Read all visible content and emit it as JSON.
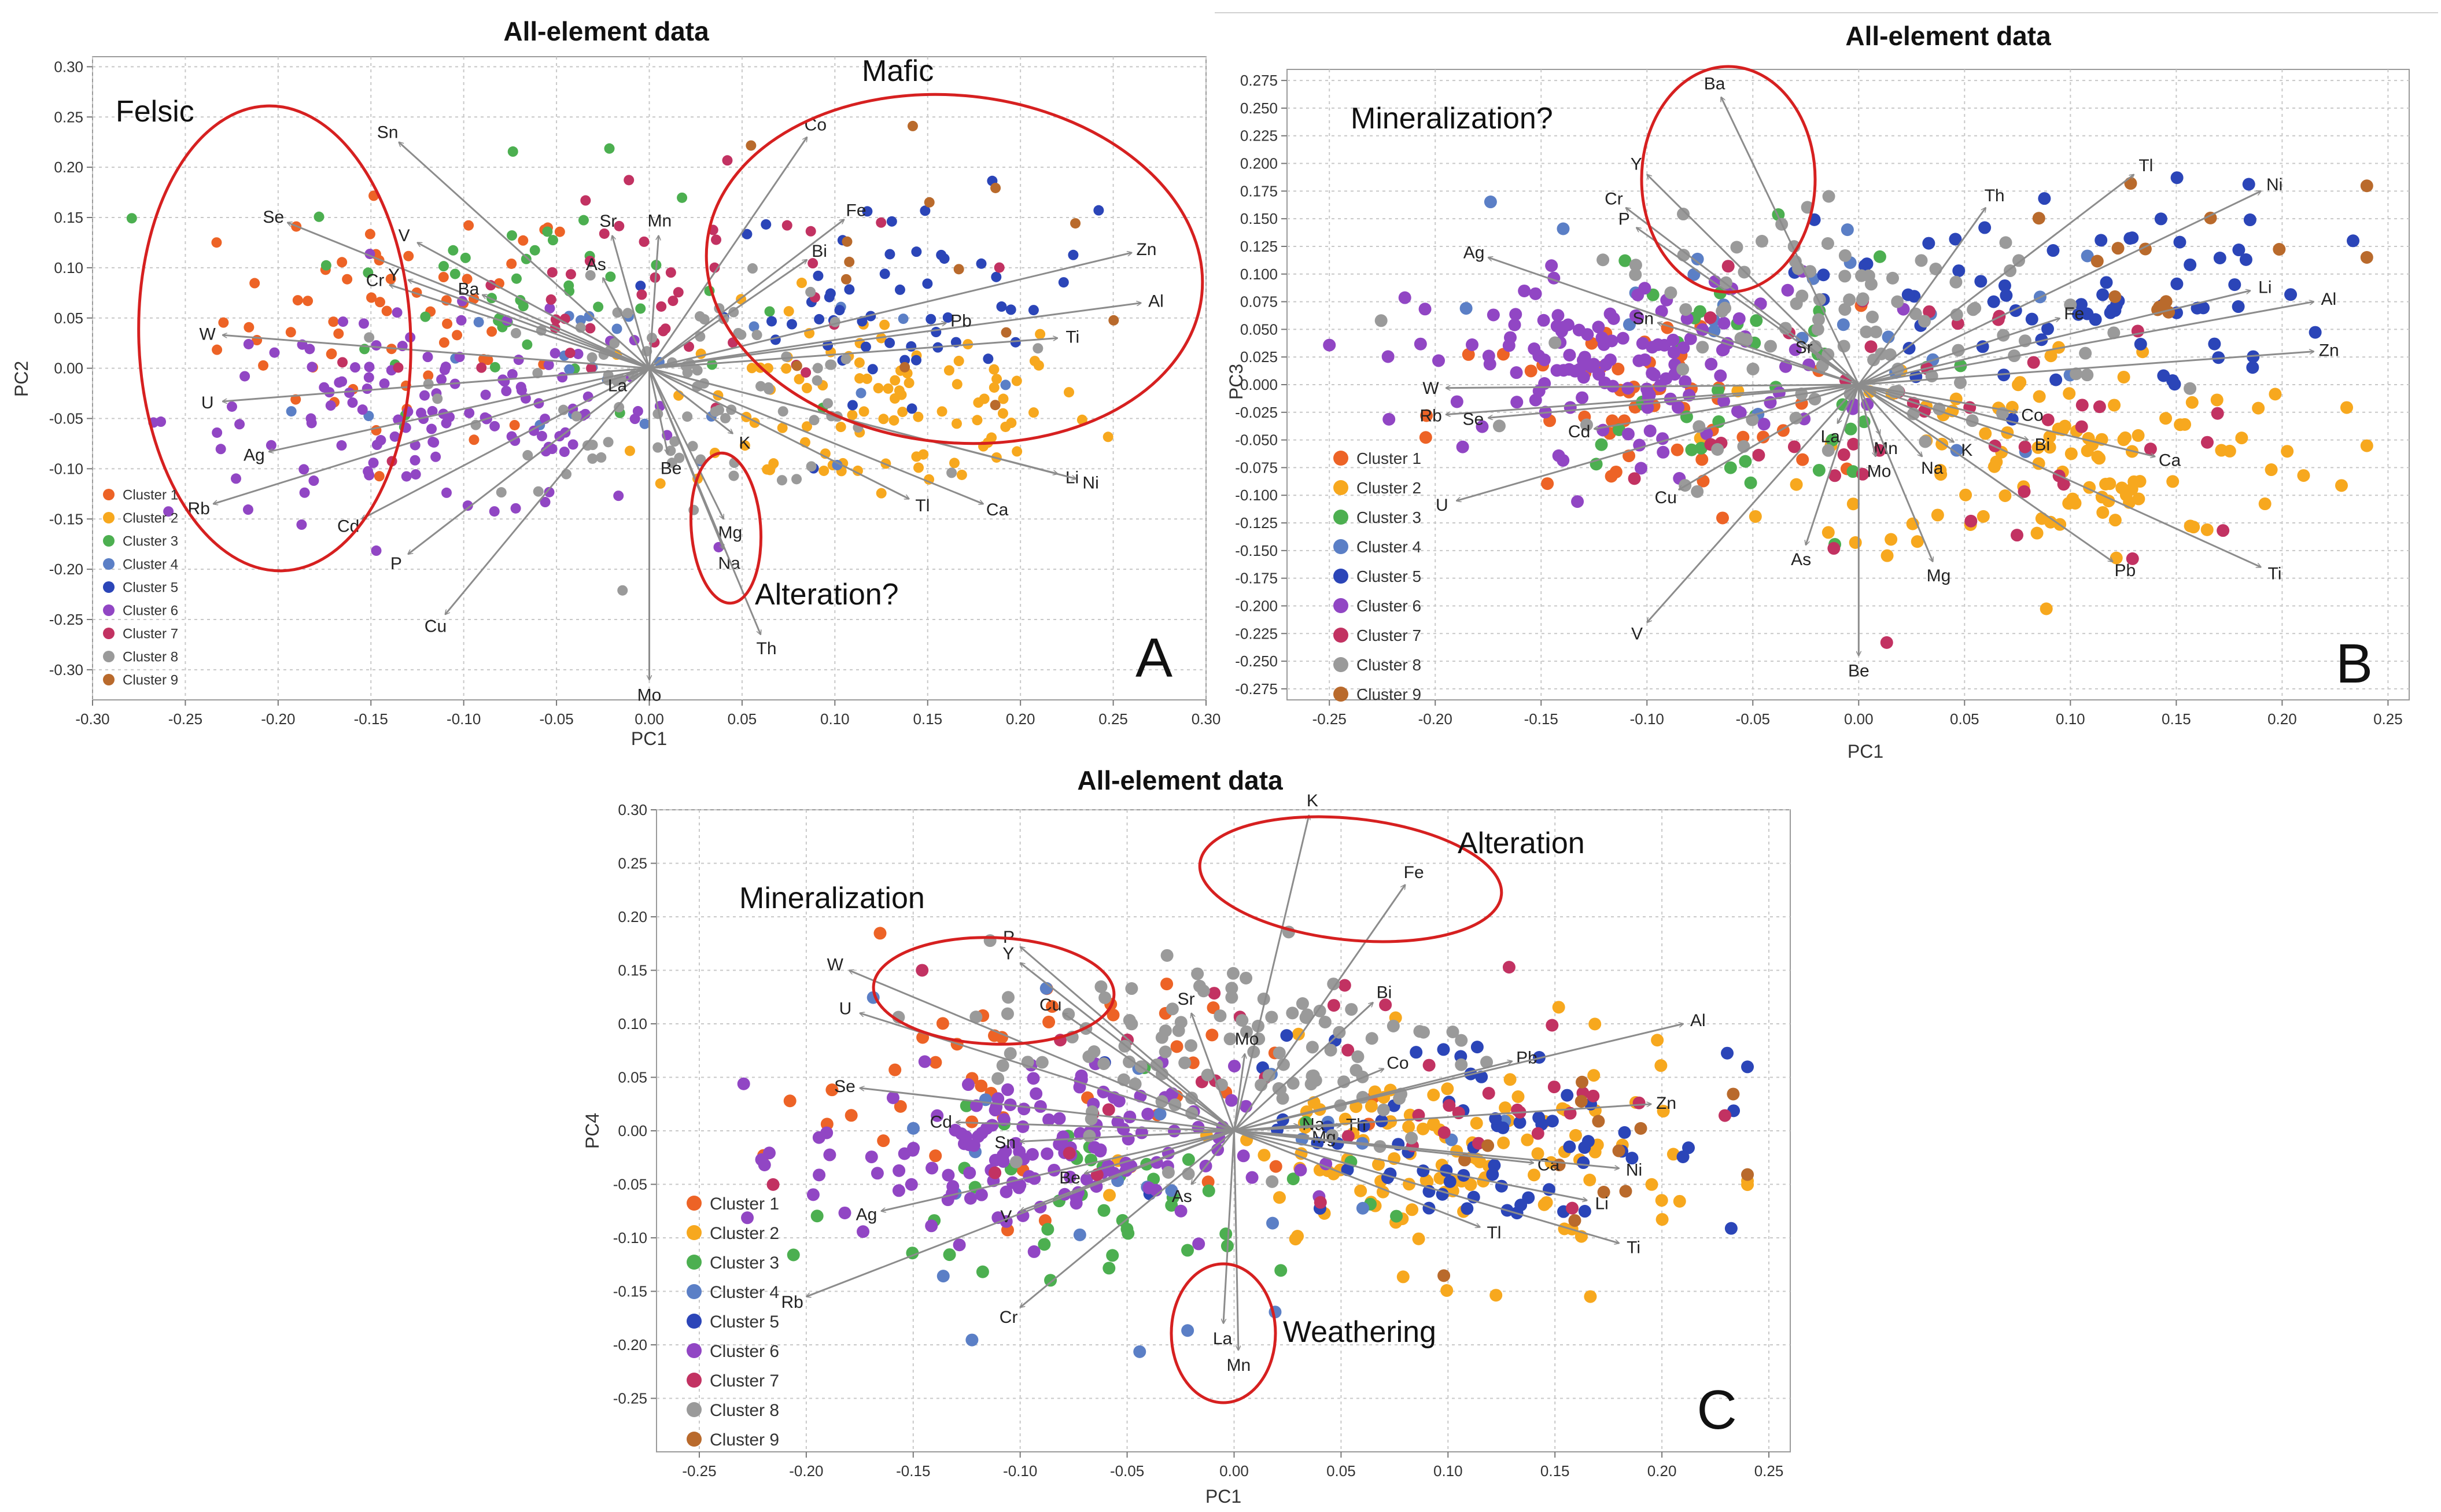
{
  "figure": {
    "titles": [
      "All-element data",
      "All-element data",
      "All-element data"
    ],
    "panel_labels": [
      "A",
      "B",
      "C"
    ]
  },
  "chart_data": [
    {
      "type": "scatter",
      "title": "All-element data",
      "xlabel": "PC1",
      "ylabel": "PC2",
      "xlim": [
        -0.3,
        0.3
      ],
      "ylim": [
        -0.33,
        0.31
      ],
      "x_ticks": [
        "-0.30",
        "-0.25",
        "-0.20",
        "-0.15",
        "-0.10",
        "-0.05",
        "0.00",
        "0.05",
        "0.10",
        "0.15",
        "0.20",
        "0.25",
        "0.30"
      ],
      "y_ticks": [
        "-0.30",
        "-0.25",
        "-0.20",
        "-0.15",
        "-0.10",
        "-0.05",
        "0.00",
        "0.05",
        "0.10",
        "0.15",
        "0.20",
        "0.25",
        "0.30"
      ],
      "grid": true,
      "legend_position": "bottom-left",
      "legend": [
        "Cluster 1",
        "Cluster 2",
        "Cluster 3",
        "Cluster 4",
        "Cluster 5",
        "Cluster 6",
        "Cluster 7",
        "Cluster 8",
        "Cluster 9"
      ],
      "loadings": [
        {
          "label": "Sn",
          "x": -0.135,
          "y": 0.225
        },
        {
          "label": "Se",
          "x": -0.195,
          "y": 0.145
        },
        {
          "label": "V",
          "x": -0.125,
          "y": 0.125
        },
        {
          "label": "Cr",
          "x": -0.14,
          "y": 0.083
        },
        {
          "label": "Y",
          "x": -0.13,
          "y": 0.088
        },
        {
          "label": "Ba",
          "x": -0.09,
          "y": 0.073
        },
        {
          "label": "W",
          "x": -0.23,
          "y": 0.033
        },
        {
          "label": "U",
          "x": -0.23,
          "y": -0.033
        },
        {
          "label": "Ag",
          "x": -0.205,
          "y": -0.083
        },
        {
          "label": "Rb",
          "x": -0.235,
          "y": -0.135
        },
        {
          "label": "Cd",
          "x": -0.155,
          "y": -0.15
        },
        {
          "label": "P",
          "x": -0.13,
          "y": -0.185
        },
        {
          "label": "Cu",
          "x": -0.11,
          "y": -0.245
        },
        {
          "label": "Sr",
          "x": -0.02,
          "y": 0.132
        },
        {
          "label": "Mn",
          "x": 0.005,
          "y": 0.132
        },
        {
          "label": "As",
          "x": -0.025,
          "y": 0.09
        },
        {
          "label": "La",
          "x": -0.01,
          "y": -0.01
        },
        {
          "label": "Be",
          "x": 0.01,
          "y": -0.085
        },
        {
          "label": "Mo",
          "x": 0.0,
          "y": -0.31
        },
        {
          "label": "Co",
          "x": 0.085,
          "y": 0.23
        },
        {
          "label": "Fe",
          "x": 0.105,
          "y": 0.148
        },
        {
          "label": "Bi",
          "x": 0.085,
          "y": 0.108
        },
        {
          "label": "Zn",
          "x": 0.26,
          "y": 0.115
        },
        {
          "label": "Al",
          "x": 0.265,
          "y": 0.065
        },
        {
          "label": "Pb",
          "x": 0.16,
          "y": 0.045
        },
        {
          "label": "Ti",
          "x": 0.22,
          "y": 0.03
        },
        {
          "label": "K",
          "x": 0.045,
          "y": -0.065
        },
        {
          "label": "Mg",
          "x": 0.04,
          "y": -0.15
        },
        {
          "label": "Na",
          "x": 0.04,
          "y": -0.18
        },
        {
          "label": "Th",
          "x": 0.06,
          "y": -0.265
        },
        {
          "label": "Tl",
          "x": 0.14,
          "y": -0.13
        },
        {
          "label": "Ca",
          "x": 0.18,
          "y": -0.135
        },
        {
          "label": "Li",
          "x": 0.22,
          "y": -0.105
        },
        {
          "label": "Ni",
          "x": 0.23,
          "y": -0.11
        }
      ],
      "annotations": [
        "Felsic",
        "Mafic",
        "Alteration?"
      ]
    },
    {
      "type": "scatter",
      "title": "All-element data",
      "xlabel": "PC1",
      "ylabel": "PC3",
      "xlim": [
        -0.27,
        0.26
      ],
      "ylim": [
        -0.285,
        0.285
      ],
      "x_ticks": [
        "-0.25",
        "-0.20",
        "-0.15",
        "-0.10",
        "-0.05",
        "0.00",
        "0.05",
        "0.10",
        "0.15",
        "0.20",
        "0.25"
      ],
      "y_ticks": [
        "-0.275",
        "-0.250",
        "-0.225",
        "-0.200",
        "-0.175",
        "-0.150",
        "-0.125",
        "-0.100",
        "-0.075",
        "-0.050",
        "-0.025",
        "0.000",
        "0.025",
        "0.050",
        "0.075",
        "0.100",
        "0.125",
        "0.150",
        "0.175",
        "0.200",
        "0.225",
        "0.250",
        "0.275"
      ],
      "grid": true,
      "legend_position": "bottom-left",
      "legend": [
        "Cluster 1",
        "Cluster 2",
        "Cluster 3",
        "Cluster 4",
        "Cluster 5",
        "Cluster 6",
        "Cluster 7",
        "Cluster 8",
        "Cluster 9"
      ],
      "loadings": [
        {
          "label": "Ba",
          "x": -0.065,
          "y": 0.26
        },
        {
          "label": "Y",
          "x": -0.1,
          "y": 0.19
        },
        {
          "label": "Cr",
          "x": -0.11,
          "y": 0.16
        },
        {
          "label": "P",
          "x": -0.105,
          "y": 0.142
        },
        {
          "label": "Ag",
          "x": -0.175,
          "y": 0.115
        },
        {
          "label": "Sn",
          "x": -0.095,
          "y": 0.056
        },
        {
          "label": "W",
          "x": -0.195,
          "y": -0.003
        },
        {
          "label": "Rb",
          "x": -0.195,
          "y": -0.027
        },
        {
          "label": "Se",
          "x": -0.175,
          "y": -0.03
        },
        {
          "label": "Cd",
          "x": -0.125,
          "y": -0.04
        },
        {
          "label": "U",
          "x": -0.19,
          "y": -0.105
        },
        {
          "label": "Cu",
          "x": -0.085,
          "y": -0.095
        },
        {
          "label": "V",
          "x": -0.1,
          "y": -0.215
        },
        {
          "label": "As",
          "x": -0.025,
          "y": -0.145
        },
        {
          "label": "Be",
          "x": 0.0,
          "y": -0.245
        },
        {
          "label": "Sr",
          "x": -0.02,
          "y": 0.026
        },
        {
          "label": "La",
          "x": -0.01,
          "y": -0.035
        },
        {
          "label": "Mn",
          "x": 0.01,
          "y": -0.045
        },
        {
          "label": "Mo",
          "x": 0.008,
          "y": -0.065
        },
        {
          "label": "Na",
          "x": 0.03,
          "y": -0.065
        },
        {
          "label": "K",
          "x": 0.045,
          "y": -0.052
        },
        {
          "label": "Mg",
          "x": 0.035,
          "y": -0.16
        },
        {
          "label": "Th",
          "x": 0.06,
          "y": 0.16
        },
        {
          "label": "Tl",
          "x": 0.13,
          "y": 0.19
        },
        {
          "label": "Ni",
          "x": 0.19,
          "y": 0.175
        },
        {
          "label": "Li",
          "x": 0.185,
          "y": 0.085
        },
        {
          "label": "Al",
          "x": 0.215,
          "y": 0.075
        },
        {
          "label": "Fe",
          "x": 0.095,
          "y": 0.06
        },
        {
          "label": "Zn",
          "x": 0.215,
          "y": 0.03
        },
        {
          "label": "Co",
          "x": 0.075,
          "y": -0.025
        },
        {
          "label": "Bi",
          "x": 0.08,
          "y": -0.05
        },
        {
          "label": "Ca",
          "x": 0.14,
          "y": -0.065
        },
        {
          "label": "Pb",
          "x": 0.12,
          "y": -0.16
        },
        {
          "label": "Ti",
          "x": 0.19,
          "y": -0.165
        }
      ],
      "annotations": [
        "Mineralization?"
      ]
    },
    {
      "type": "scatter",
      "title": "All-element data",
      "xlabel": "PC1",
      "ylabel": "PC4",
      "xlim": [
        -0.27,
        0.26
      ],
      "ylim": [
        -0.3,
        0.3
      ],
      "x_ticks": [
        "-0.25",
        "-0.20",
        "-0.15",
        "-0.10",
        "-0.05",
        "0.00",
        "0.05",
        "0.10",
        "0.15",
        "0.20",
        "0.25"
      ],
      "y_ticks": [
        "-0.25",
        "-0.20",
        "-0.15",
        "-0.10",
        "-0.05",
        "0.00",
        "0.05",
        "0.10",
        "0.15",
        "0.20",
        "0.25",
        "0.30"
      ],
      "grid": true,
      "legend_position": "bottom-left",
      "legend": [
        "Cluster 1",
        "Cluster 2",
        "Cluster 3",
        "Cluster 4",
        "Cluster 5",
        "Cluster 6",
        "Cluster 7",
        "Cluster 8",
        "Cluster 9"
      ],
      "loadings": [
        {
          "label": "K",
          "x": 0.035,
          "y": 0.295
        },
        {
          "label": "Fe",
          "x": 0.08,
          "y": 0.23
        },
        {
          "label": "W",
          "x": -0.18,
          "y": 0.15
        },
        {
          "label": "U",
          "x": -0.175,
          "y": 0.11
        },
        {
          "label": "P",
          "x": -0.1,
          "y": 0.172
        },
        {
          "label": "Y",
          "x": -0.1,
          "y": 0.157
        },
        {
          "label": "Cu",
          "x": -0.08,
          "y": 0.11
        },
        {
          "label": "Sr",
          "x": -0.02,
          "y": 0.11
        },
        {
          "label": "Bi",
          "x": 0.065,
          "y": 0.12
        },
        {
          "label": "Mo",
          "x": 0.005,
          "y": 0.072
        },
        {
          "label": "Co",
          "x": 0.07,
          "y": 0.058
        },
        {
          "label": "Pb",
          "x": 0.13,
          "y": 0.065
        },
        {
          "label": "Al",
          "x": 0.21,
          "y": 0.1
        },
        {
          "label": "Se",
          "x": -0.175,
          "y": 0.04
        },
        {
          "label": "Cd",
          "x": -0.13,
          "y": 0.008
        },
        {
          "label": "Sn",
          "x": -0.1,
          "y": -0.01
        },
        {
          "label": "Be",
          "x": -0.07,
          "y": -0.04
        },
        {
          "label": "Ag",
          "x": -0.165,
          "y": -0.075
        },
        {
          "label": "V",
          "x": -0.1,
          "y": -0.075
        },
        {
          "label": "As",
          "x": -0.02,
          "y": -0.05
        },
        {
          "label": "Rb",
          "x": -0.2,
          "y": -0.155
        },
        {
          "label": "Cr",
          "x": -0.1,
          "y": -0.165
        },
        {
          "label": "La",
          "x": -0.005,
          "y": -0.18
        },
        {
          "label": "Mn",
          "x": 0.002,
          "y": -0.205
        },
        {
          "label": "Na",
          "x": 0.03,
          "y": 0.005
        },
        {
          "label": "Mg",
          "x": 0.035,
          "y": -0.005
        },
        {
          "label": "Th",
          "x": 0.05,
          "y": 0.005
        },
        {
          "label": "Zn",
          "x": 0.195,
          "y": 0.025
        },
        {
          "label": "Ca",
          "x": 0.14,
          "y": -0.03
        },
        {
          "label": "Ni",
          "x": 0.18,
          "y": -0.035
        },
        {
          "label": "Li",
          "x": 0.165,
          "y": -0.065
        },
        {
          "label": "Tl",
          "x": 0.115,
          "y": -0.09
        },
        {
          "label": "Ti",
          "x": 0.18,
          "y": -0.105
        }
      ],
      "annotations": [
        "Mineralization",
        "Alteration",
        "Weathering"
      ]
    }
  ],
  "colors": {
    "clusters": [
      "#ed6326",
      "#f7a81e",
      "#4caf50",
      "#5b7fc6",
      "#2b45b8",
      "#9146c4",
      "#c23262",
      "#9a9a9a",
      "#b96a2c"
    ],
    "ellipse": "#d62020",
    "vector": "#8c8c8c",
    "grid": "#c8c8c8"
  }
}
